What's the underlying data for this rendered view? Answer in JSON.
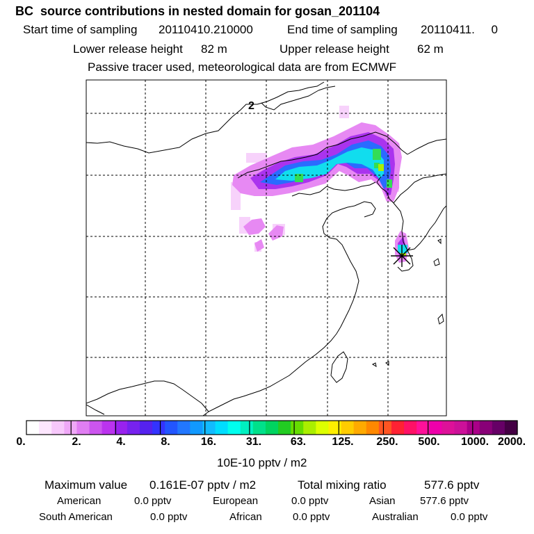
{
  "header": {
    "title": "BC  source contributions in nested domain for gosan_201104",
    "start_label": "Start time of sampling",
    "start_value": "20110410.210000",
    "end_label": "End time of sampling",
    "end_value": "20110411.     0",
    "lower_label": "Lower release height",
    "lower_value": "82 m",
    "upper_label": "Upper release height",
    "upper_value": "62 m",
    "note": "Passive tracer used, meteorological data are from ECMWF"
  },
  "map": {
    "contour_label": "2",
    "receptor_symbol": "asterisk-marker"
  },
  "colorbar": {
    "ticks": [
      "0.",
      "2.",
      "4.",
      "8.",
      "16.",
      "31.",
      "63.",
      "125.",
      "250.",
      "500.",
      "1000.",
      "2000."
    ],
    "units": "10E-10 pptv / m2",
    "colors": [
      "#ffffff",
      "#fde6fe",
      "#f7c8fb",
      "#efa8f7",
      "#e07ef2",
      "#cc55ee",
      "#bb33ee",
      "#9922ee",
      "#7722ee",
      "#5522ee",
      "#3333ff",
      "#2255ff",
      "#2277ff",
      "#1199ff",
      "#11bbff",
      "#00ddff",
      "#00ffee",
      "#00f0c0",
      "#00e08a",
      "#00d460",
      "#22cc22",
      "#66dd00",
      "#aaee00",
      "#ddff00",
      "#ffee00",
      "#ffcc00",
      "#ffaa00",
      "#ff8800",
      "#ff5522",
      "#ff2233",
      "#ff1166",
      "#ff1199",
      "#ee00aa",
      "#dd1199",
      "#cc1199",
      "#aa0088",
      "#880077",
      "#660066",
      "#440044"
    ]
  },
  "stats": {
    "max_label": "Maximum value",
    "max_value": "0.161E-07 pptv / m2",
    "total_label": "Total mixing ratio",
    "total_value": "577.6 pptv",
    "regions": [
      {
        "name": "American",
        "value": "0.0 pptv"
      },
      {
        "name": "European",
        "value": "0.0 pptv"
      },
      {
        "name": "Asian",
        "value": "577.6 pptv"
      },
      {
        "name": "South American",
        "value": "0.0 pptv"
      },
      {
        "name": "African",
        "value": "0.0 pptv"
      },
      {
        "name": "Australian",
        "value": "0.0 pptv"
      }
    ]
  }
}
